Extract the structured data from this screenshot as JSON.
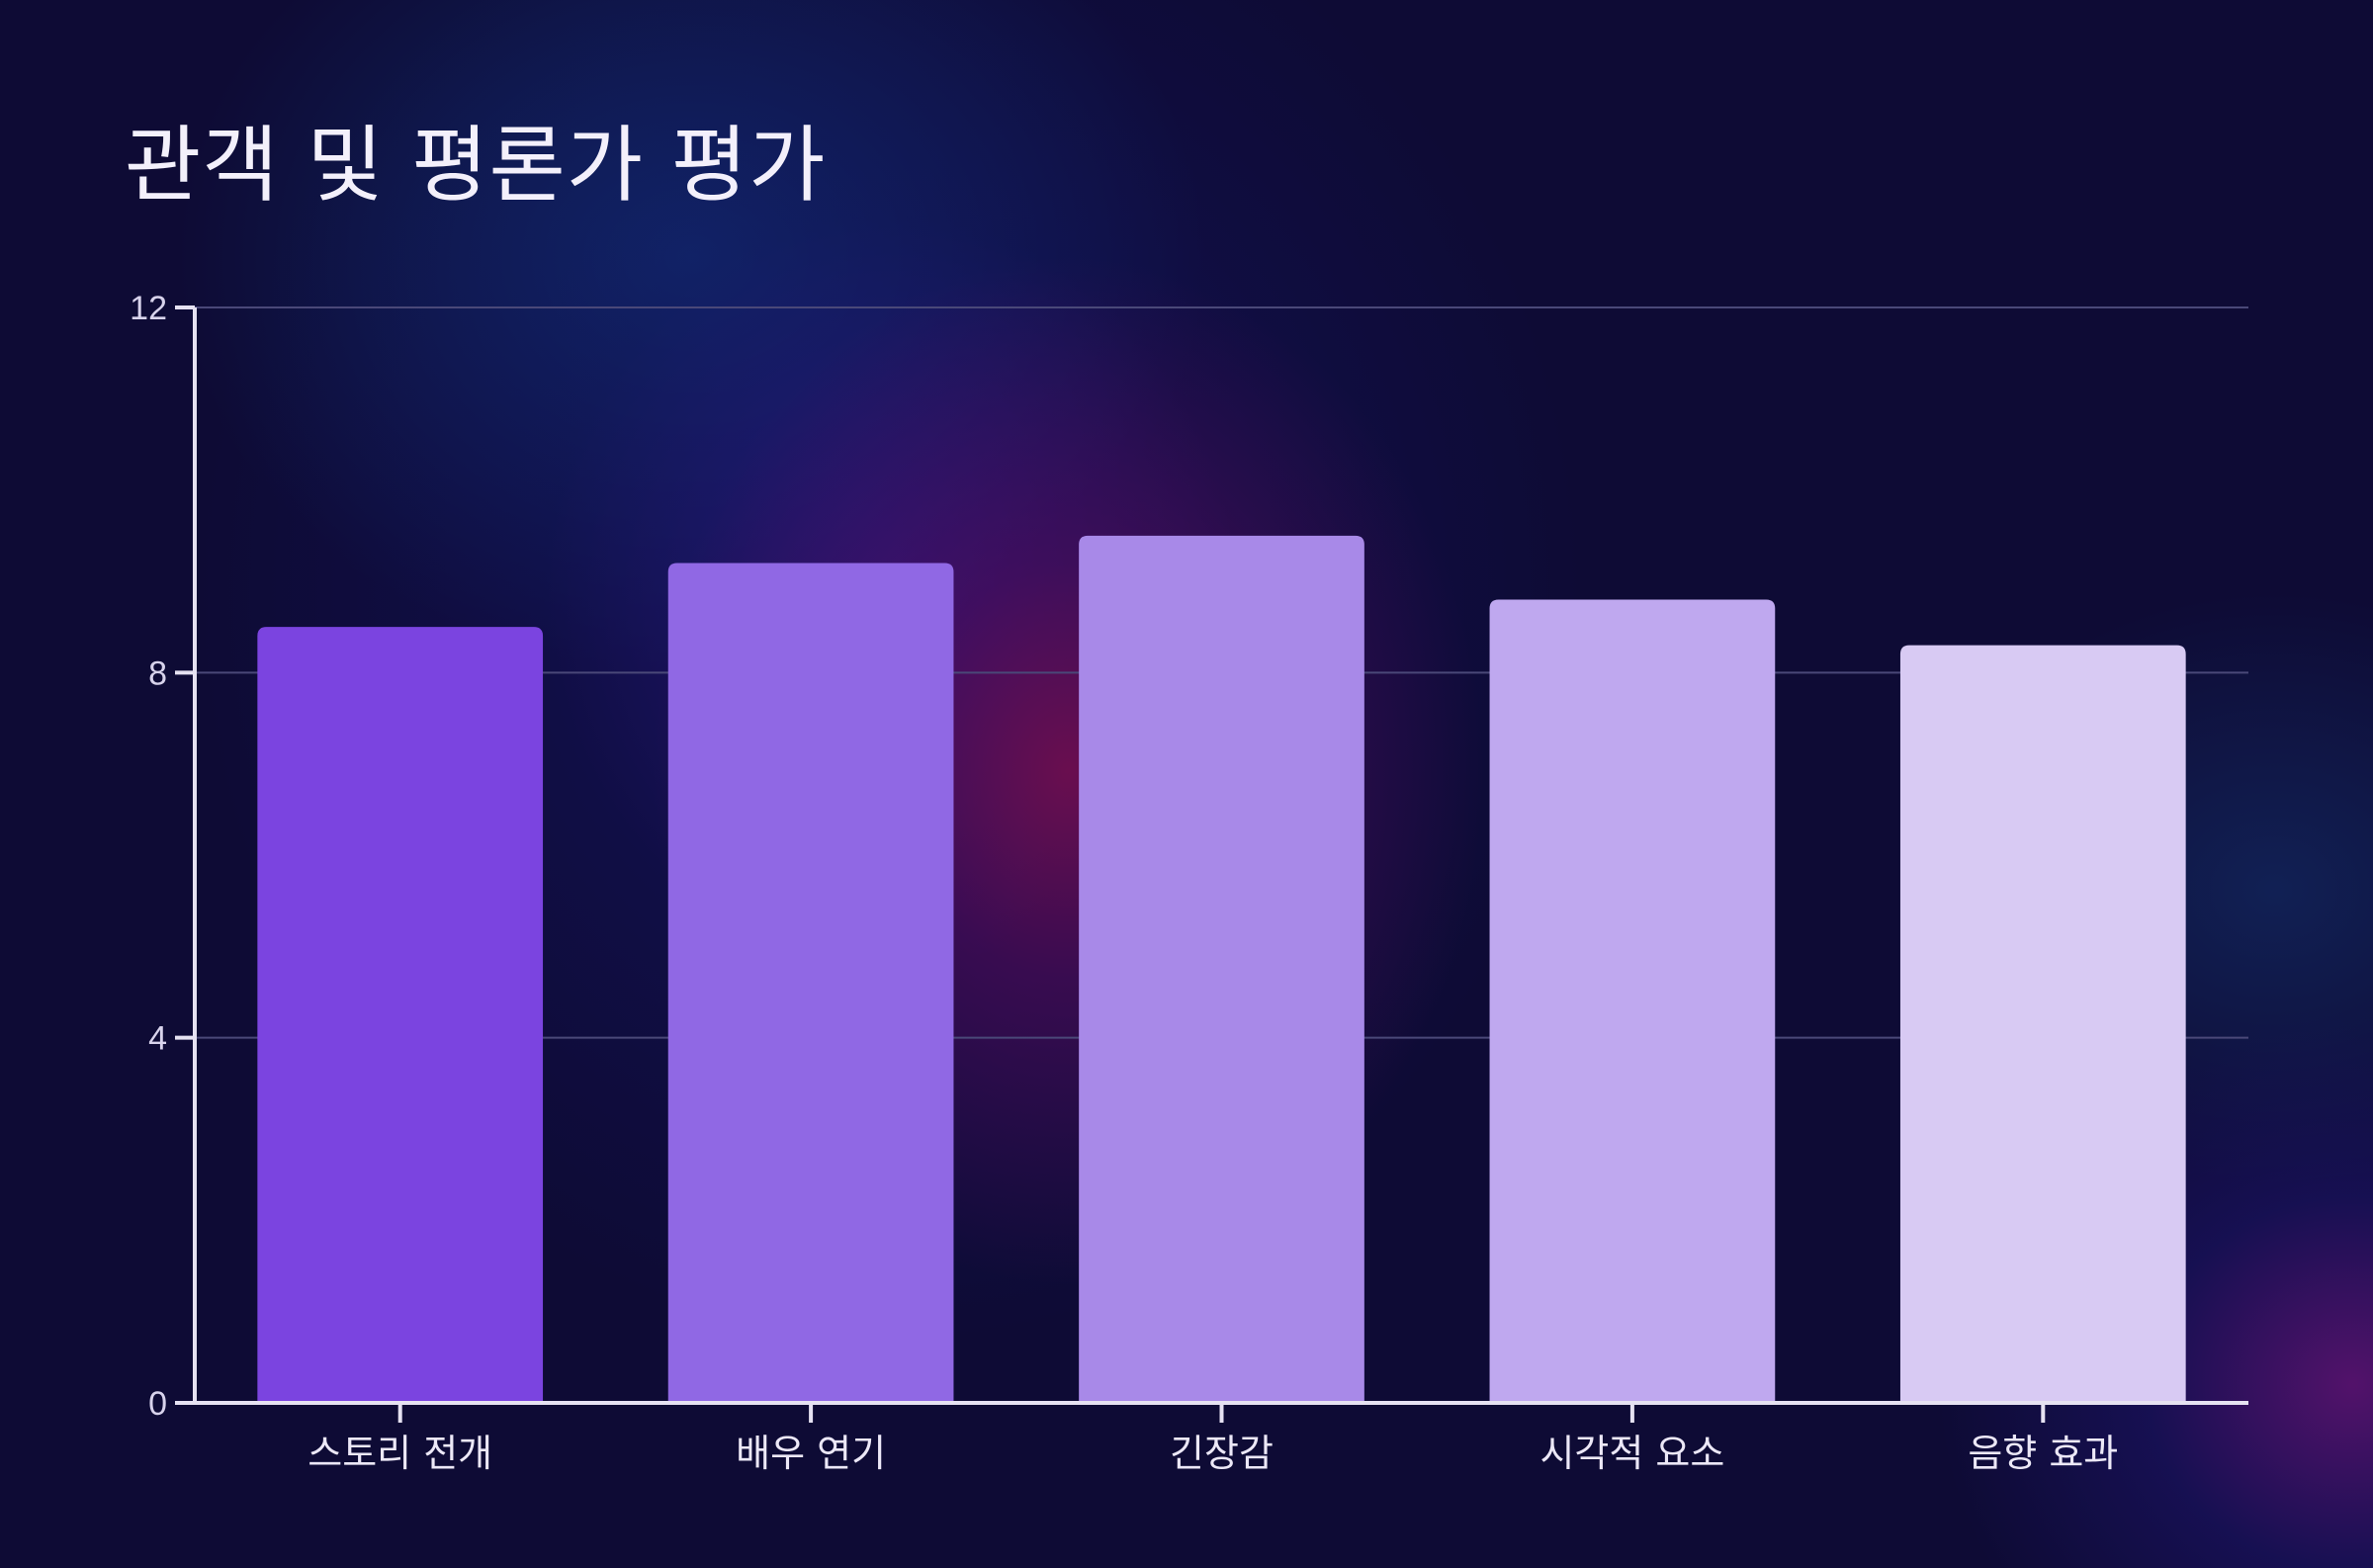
{
  "chart_data": {
    "type": "bar",
    "title": "관객 및 평론가 평가",
    "xlabel": "",
    "ylabel": "",
    "categories": [
      "스토리 전개",
      "배우 연기",
      "긴장감",
      "시각적 요소",
      "음향 효과"
    ],
    "values": [
      8.5,
      9.2,
      9.5,
      8.8,
      8.3
    ],
    "ylim": [
      0,
      12
    ],
    "yticks": [
      0,
      4,
      8,
      12
    ],
    "grid": true,
    "legend": "none",
    "bar_colors": [
      "#7b44e0",
      "#9068e4",
      "#a889e8",
      "#bfa8ef",
      "#d8caf3"
    ],
    "gridline_color": "#4a4878",
    "axis_color": "#e6e2f2"
  }
}
